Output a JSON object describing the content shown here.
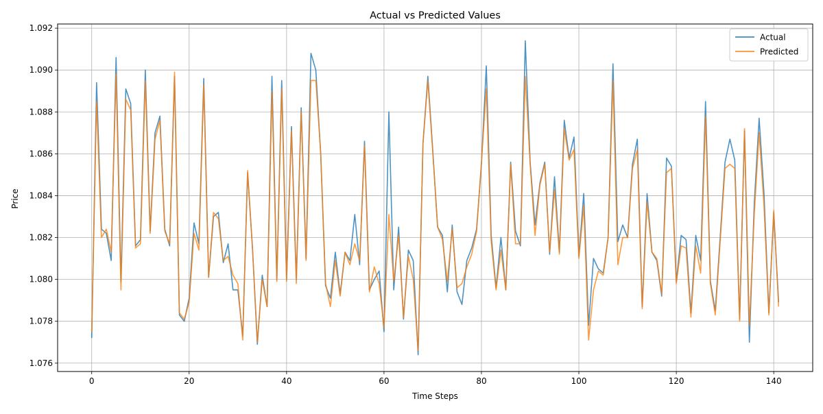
{
  "chart_data": {
    "type": "line",
    "title": "Actual vs Predicted Values",
    "xlabel": "Time Steps",
    "ylabel": "Price",
    "xlim": [
      -7,
      148
    ],
    "ylim": [
      1.0756,
      1.0922
    ],
    "xticks": [
      0,
      20,
      40,
      60,
      80,
      100,
      120,
      140
    ],
    "xtick_labels": [
      "0",
      "20",
      "40",
      "60",
      "80",
      "100",
      "120",
      "140"
    ],
    "yticks": [
      1.076,
      1.078,
      1.08,
      1.082,
      1.084,
      1.086,
      1.088,
      1.09,
      1.092
    ],
    "ytick_labels": [
      "1.076",
      "1.078",
      "1.080",
      "1.082",
      "1.084",
      "1.086",
      "1.088",
      "1.090",
      "1.092"
    ],
    "grid": true,
    "legend_position": "top-right",
    "x": [
      0,
      1,
      2,
      3,
      4,
      5,
      6,
      7,
      8,
      9,
      10,
      11,
      12,
      13,
      14,
      15,
      16,
      17,
      18,
      19,
      20,
      21,
      22,
      23,
      24,
      25,
      26,
      27,
      28,
      29,
      30,
      31,
      32,
      33,
      34,
      35,
      36,
      37,
      38,
      39,
      40,
      41,
      42,
      43,
      44,
      45,
      46,
      47,
      48,
      49,
      50,
      51,
      52,
      53,
      54,
      55,
      56,
      57,
      58,
      59,
      60,
      61,
      62,
      63,
      64,
      65,
      66,
      67,
      68,
      69,
      70,
      71,
      72,
      73,
      74,
      75,
      76,
      77,
      78,
      79,
      80,
      81,
      82,
      83,
      84,
      85,
      86,
      87,
      88,
      89,
      90,
      91,
      92,
      93,
      94,
      95,
      96,
      97,
      98,
      99,
      100,
      101,
      102,
      103,
      104,
      105,
      106,
      107,
      108,
      109,
      110,
      111,
      112,
      113,
      114,
      115,
      116,
      117,
      118,
      119,
      120,
      121,
      122,
      123,
      124,
      125,
      126,
      127,
      128,
      129,
      130,
      131,
      132,
      133,
      134,
      135,
      136,
      137,
      138,
      139,
      140,
      141
    ],
    "series": [
      {
        "name": "Actual",
        "color": "#1f77b4",
        "values": [
          1.0772,
          1.0894,
          1.0824,
          1.0822,
          1.0809,
          1.0906,
          1.0799,
          1.0891,
          1.0884,
          1.0816,
          1.0819,
          1.09,
          1.0823,
          1.087,
          1.0878,
          1.0824,
          1.0816,
          1.0897,
          1.0783,
          1.078,
          1.0791,
          1.0827,
          1.0817,
          1.0896,
          1.0801,
          1.083,
          1.0832,
          1.0808,
          1.0817,
          1.0795,
          1.0795,
          1.0773,
          1.0851,
          1.0815,
          1.0769,
          1.0802,
          1.0787,
          1.0897,
          1.08,
          1.0895,
          1.08,
          1.0873,
          1.08,
          1.0882,
          1.081,
          1.0908,
          1.09,
          1.086,
          1.0797,
          1.0791,
          1.0813,
          1.0793,
          1.0813,
          1.0809,
          1.0831,
          1.0807,
          1.0866,
          1.0795,
          1.08,
          1.0804,
          1.0775,
          1.088,
          1.0795,
          1.0825,
          1.0781,
          1.0814,
          1.0809,
          1.0764,
          1.0865,
          1.0897,
          1.0862,
          1.0825,
          1.0821,
          1.0794,
          1.0826,
          1.0794,
          1.0788,
          1.0809,
          1.0815,
          1.0824,
          1.0855,
          1.0902,
          1.0821,
          1.0796,
          1.082,
          1.0795,
          1.0856,
          1.0823,
          1.0816,
          1.0914,
          1.0856,
          1.0826,
          1.0846,
          1.0856,
          1.0812,
          1.0849,
          1.0813,
          1.0876,
          1.0858,
          1.0868,
          1.0811,
          1.0841,
          1.0778,
          1.081,
          1.0805,
          1.0803,
          1.082,
          1.0903,
          1.0818,
          1.0826,
          1.082,
          1.0855,
          1.0867,
          1.0787,
          1.0841,
          1.0813,
          1.0809,
          1.0792,
          1.0858,
          1.0854,
          1.0799,
          1.0821,
          1.0819,
          1.0784,
          1.0821,
          1.0809,
          1.0885,
          1.0799,
          1.0785,
          1.082,
          1.0856,
          1.0867,
          1.0857,
          1.0781,
          1.0871,
          1.077,
          1.0836,
          1.0877,
          1.0841,
          1.0784,
          1.0832,
          1.0789
        ]
      },
      {
        "name": "Predicted",
        "color": "#ff7f0e",
        "values": [
          1.0775,
          1.0885,
          1.082,
          1.0824,
          1.0813,
          1.0898,
          1.0795,
          1.0886,
          1.0881,
          1.0815,
          1.0817,
          1.0895,
          1.0822,
          1.0867,
          1.0876,
          1.0823,
          1.0817,
          1.0899,
          1.0784,
          1.0781,
          1.0789,
          1.0822,
          1.0814,
          1.0893,
          1.0801,
          1.0832,
          1.0829,
          1.0809,
          1.0811,
          1.0802,
          1.0798,
          1.0771,
          1.0852,
          1.0815,
          1.077,
          1.08,
          1.0787,
          1.089,
          1.0799,
          1.0891,
          1.0799,
          1.0871,
          1.0798,
          1.088,
          1.0809,
          1.0895,
          1.0895,
          1.0861,
          1.0798,
          1.0787,
          1.0809,
          1.0792,
          1.0813,
          1.0807,
          1.0817,
          1.0809,
          1.0864,
          1.0794,
          1.0806,
          1.0798,
          1.0777,
          1.0831,
          1.0799,
          1.0821,
          1.0782,
          1.0811,
          1.08,
          1.0766,
          1.0865,
          1.0895,
          1.0861,
          1.0825,
          1.0819,
          1.0799,
          1.0824,
          1.0796,
          1.0798,
          1.0806,
          1.0812,
          1.0823,
          1.0856,
          1.0891,
          1.0818,
          1.0795,
          1.0814,
          1.0795,
          1.0855,
          1.0817,
          1.0817,
          1.0897,
          1.0855,
          1.0821,
          1.0845,
          1.0855,
          1.0813,
          1.0843,
          1.0812,
          1.0872,
          1.0857,
          1.0862,
          1.081,
          1.0835,
          1.0771,
          1.0795,
          1.0804,
          1.0802,
          1.082,
          1.0895,
          1.0807,
          1.082,
          1.082,
          1.0853,
          1.0862,
          1.0786,
          1.0837,
          1.0813,
          1.081,
          1.0793,
          1.0851,
          1.0853,
          1.0798,
          1.0816,
          1.0815,
          1.0782,
          1.0816,
          1.0803,
          1.0878,
          1.0798,
          1.0783,
          1.0818,
          1.0853,
          1.0855,
          1.0853,
          1.078,
          1.0872,
          1.0778,
          1.0831,
          1.087,
          1.0835,
          1.0783,
          1.0833,
          1.0787
        ]
      }
    ]
  }
}
